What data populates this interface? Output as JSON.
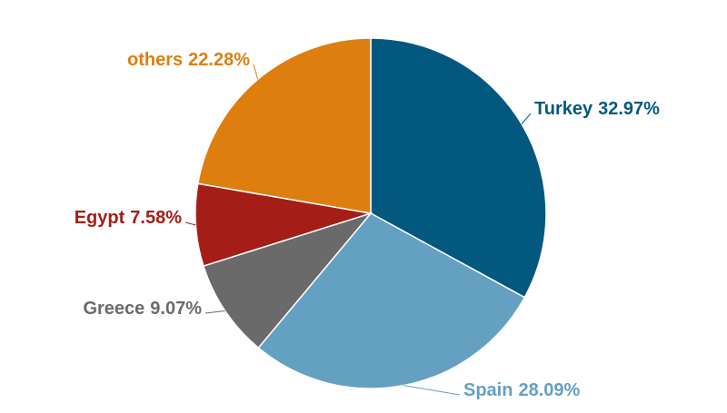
{
  "chart_data": {
    "type": "pie",
    "categories": [
      "Turkey",
      "Spain",
      "Greece",
      "Egypt",
      "others"
    ],
    "values": [
      32.97,
      28.09,
      9.07,
      7.58,
      22.28
    ],
    "value_labels": [
      "32.97%",
      "28.09%",
      "9.07%",
      "7.58%",
      "22.28%"
    ],
    "colors": [
      "#02587f",
      "#64a0c1",
      "#6a6a6a",
      "#a51d17",
      "#dd7e0e"
    ]
  }
}
